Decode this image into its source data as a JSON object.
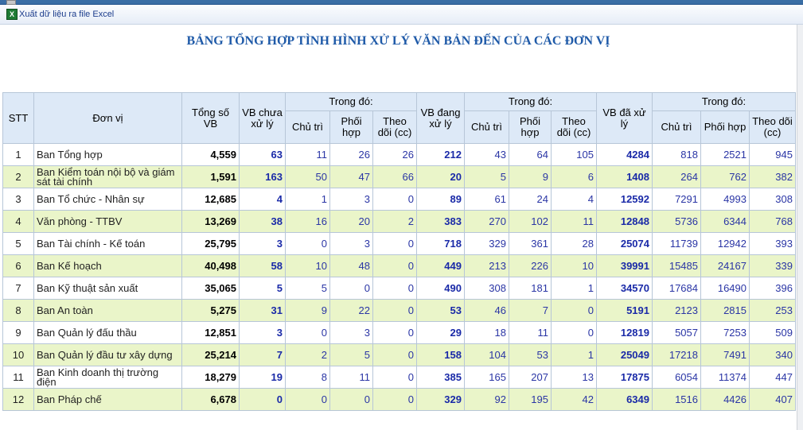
{
  "toolbar": {
    "export_label": "Xuất dữ liệu ra file Excel",
    "export_icon": "excel-icon"
  },
  "title": "BẢNG TỔNG HỢP TÌNH HÌNH XỬ LÝ VĂN BẢN ĐẾN CỦA CÁC ĐƠN VỊ",
  "colors": {
    "header_bg": "#dde9f7",
    "row_alt_bg": "#eaf5c9",
    "title_color": "#1f5aa8",
    "number_color": "#1a2aa8"
  },
  "headers": {
    "stt": "STT",
    "unit": "Đơn vị",
    "total": "Tổng số VB",
    "unprocessed": "VB chưa xử lý",
    "processing": "VB đang xử lý",
    "processed": "VB đã xử lý",
    "group": "Trong đó:",
    "chu_tri": "Chủ trì",
    "phoi_hop_short": "Phối hợp",
    "theo_doi": "Theo dõi (cc)"
  },
  "rows": [
    {
      "stt": "1",
      "unit": "Ban Tổng hợp",
      "total": "4,559",
      "unprocessed": "63",
      "u_chutri": "11",
      "u_phoihop": "26",
      "u_theodoi": "26",
      "processing": "212",
      "p_chutri": "43",
      "p_phoihop": "64",
      "p_theodoi": "105",
      "processed": "4284",
      "d_chutri": "818",
      "d_phoihop": "2521",
      "d_theodoi": "945"
    },
    {
      "stt": "2",
      "unit": "Ban Kiểm toán nội bộ và giám sát tài chính",
      "total": "1,591",
      "unprocessed": "163",
      "u_chutri": "50",
      "u_phoihop": "47",
      "u_theodoi": "66",
      "processing": "20",
      "p_chutri": "5",
      "p_phoihop": "9",
      "p_theodoi": "6",
      "processed": "1408",
      "d_chutri": "264",
      "d_phoihop": "762",
      "d_theodoi": "382"
    },
    {
      "stt": "3",
      "unit": "Ban Tổ chức - Nhân sự",
      "total": "12,685",
      "unprocessed": "4",
      "u_chutri": "1",
      "u_phoihop": "3",
      "u_theodoi": "0",
      "processing": "89",
      "p_chutri": "61",
      "p_phoihop": "24",
      "p_theodoi": "4",
      "processed": "12592",
      "d_chutri": "7291",
      "d_phoihop": "4993",
      "d_theodoi": "308"
    },
    {
      "stt": "4",
      "unit": "Văn phòng - TTBV",
      "total": "13,269",
      "unprocessed": "38",
      "u_chutri": "16",
      "u_phoihop": "20",
      "u_theodoi": "2",
      "processing": "383",
      "p_chutri": "270",
      "p_phoihop": "102",
      "p_theodoi": "11",
      "processed": "12848",
      "d_chutri": "5736",
      "d_phoihop": "6344",
      "d_theodoi": "768"
    },
    {
      "stt": "5",
      "unit": "Ban Tài chính - Kế toán",
      "total": "25,795",
      "unprocessed": "3",
      "u_chutri": "0",
      "u_phoihop": "3",
      "u_theodoi": "0",
      "processing": "718",
      "p_chutri": "329",
      "p_phoihop": "361",
      "p_theodoi": "28",
      "processed": "25074",
      "d_chutri": "11739",
      "d_phoihop": "12942",
      "d_theodoi": "393"
    },
    {
      "stt": "6",
      "unit": "Ban Kế hoạch",
      "total": "40,498",
      "unprocessed": "58",
      "u_chutri": "10",
      "u_phoihop": "48",
      "u_theodoi": "0",
      "processing": "449",
      "p_chutri": "213",
      "p_phoihop": "226",
      "p_theodoi": "10",
      "processed": "39991",
      "d_chutri": "15485",
      "d_phoihop": "24167",
      "d_theodoi": "339"
    },
    {
      "stt": "7",
      "unit": "Ban Kỹ thuật sản xuất",
      "total": "35,065",
      "unprocessed": "5",
      "u_chutri": "5",
      "u_phoihop": "0",
      "u_theodoi": "0",
      "processing": "490",
      "p_chutri": "308",
      "p_phoihop": "181",
      "p_theodoi": "1",
      "processed": "34570",
      "d_chutri": "17684",
      "d_phoihop": "16490",
      "d_theodoi": "396"
    },
    {
      "stt": "8",
      "unit": "Ban An toàn",
      "total": "5,275",
      "unprocessed": "31",
      "u_chutri": "9",
      "u_phoihop": "22",
      "u_theodoi": "0",
      "processing": "53",
      "p_chutri": "46",
      "p_phoihop": "7",
      "p_theodoi": "0",
      "processed": "5191",
      "d_chutri": "2123",
      "d_phoihop": "2815",
      "d_theodoi": "253"
    },
    {
      "stt": "9",
      "unit": "Ban Quản lý đấu thầu",
      "total": "12,851",
      "unprocessed": "3",
      "u_chutri": "0",
      "u_phoihop": "3",
      "u_theodoi": "0",
      "processing": "29",
      "p_chutri": "18",
      "p_phoihop": "11",
      "p_theodoi": "0",
      "processed": "12819",
      "d_chutri": "5057",
      "d_phoihop": "7253",
      "d_theodoi": "509"
    },
    {
      "stt": "10",
      "unit": "Ban Quản lý đầu tư xây dựng",
      "total": "25,214",
      "unprocessed": "7",
      "u_chutri": "2",
      "u_phoihop": "5",
      "u_theodoi": "0",
      "processing": "158",
      "p_chutri": "104",
      "p_phoihop": "53",
      "p_theodoi": "1",
      "processed": "25049",
      "d_chutri": "17218",
      "d_phoihop": "7491",
      "d_theodoi": "340"
    },
    {
      "stt": "11",
      "unit": "Ban Kinh doanh thị trường điện",
      "total": "18,279",
      "unprocessed": "19",
      "u_chutri": "8",
      "u_phoihop": "11",
      "u_theodoi": "0",
      "processing": "385",
      "p_chutri": "165",
      "p_phoihop": "207",
      "p_theodoi": "13",
      "processed": "17875",
      "d_chutri": "6054",
      "d_phoihop": "11374",
      "d_theodoi": "447"
    },
    {
      "stt": "12",
      "unit": "Ban Pháp chế",
      "total": "6,678",
      "unprocessed": "0",
      "u_chutri": "0",
      "u_phoihop": "0",
      "u_theodoi": "0",
      "processing": "329",
      "p_chutri": "92",
      "p_phoihop": "195",
      "p_theodoi": "42",
      "processed": "6349",
      "d_chutri": "1516",
      "d_phoihop": "4426",
      "d_theodoi": "407"
    }
  ]
}
